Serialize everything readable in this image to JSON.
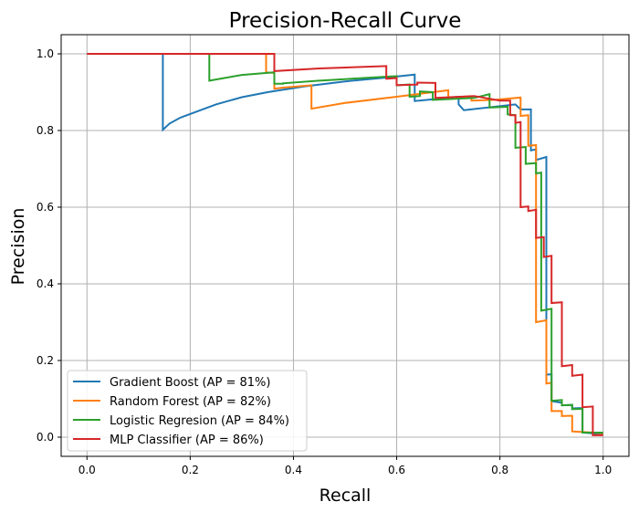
{
  "chart_data": {
    "type": "line",
    "title": "Precision-Recall Curve",
    "xlabel": "Recall",
    "ylabel": "Precision",
    "xlim": [
      -0.05,
      1.05
    ],
    "ylim": [
      -0.05,
      1.05
    ],
    "xticks": [
      0.0,
      0.2,
      0.4,
      0.6,
      0.8,
      1.0
    ],
    "yticks": [
      0.0,
      0.2,
      0.4,
      0.6,
      0.8,
      1.0
    ],
    "xtick_labels": [
      "0.0",
      "0.2",
      "0.4",
      "0.6",
      "0.8",
      "1.0"
    ],
    "ytick_labels": [
      "0.0",
      "0.2",
      "0.4",
      "0.6",
      "0.8",
      "1.0"
    ],
    "grid": true,
    "legend_position": "lower-left",
    "series": [
      {
        "name": "Gradient Boost (AP = 81%)",
        "color": "#1f77b4",
        "points": [
          [
            0.0,
            1.0
          ],
          [
            0.147,
            1.0
          ],
          [
            0.147,
            0.802
          ],
          [
            0.16,
            0.818
          ],
          [
            0.18,
            0.833
          ],
          [
            0.21,
            0.848
          ],
          [
            0.25,
            0.868
          ],
          [
            0.3,
            0.887
          ],
          [
            0.35,
            0.9
          ],
          [
            0.42,
            0.915
          ],
          [
            0.5,
            0.928
          ],
          [
            0.58,
            0.938
          ],
          [
            0.635,
            0.946
          ],
          [
            0.635,
            0.877
          ],
          [
            0.66,
            0.88
          ],
          [
            0.72,
            0.888
          ],
          [
            0.72,
            0.868
          ],
          [
            0.73,
            0.853
          ],
          [
            0.83,
            0.868
          ],
          [
            0.84,
            0.855
          ],
          [
            0.86,
            0.855
          ],
          [
            0.86,
            0.748
          ],
          [
            0.87,
            0.751
          ],
          [
            0.87,
            0.723
          ],
          [
            0.89,
            0.731
          ],
          [
            0.89,
            0.163
          ],
          [
            0.9,
            0.164
          ],
          [
            0.9,
            0.094
          ],
          [
            0.92,
            0.09
          ],
          [
            0.92,
            0.083
          ],
          [
            0.94,
            0.084
          ],
          [
            0.94,
            0.075
          ],
          [
            0.96,
            0.076
          ],
          [
            0.96,
            0.012
          ],
          [
            1.0,
            0.008
          ]
        ]
      },
      {
        "name": "Random Forest (AP = 82%)",
        "color": "#ff7f0e",
        "points": [
          [
            0.0,
            1.0
          ],
          [
            0.347,
            1.0
          ],
          [
            0.347,
            0.952
          ],
          [
            0.363,
            0.95
          ],
          [
            0.363,
            0.909
          ],
          [
            0.38,
            0.912
          ],
          [
            0.435,
            0.918
          ],
          [
            0.435,
            0.857
          ],
          [
            0.5,
            0.872
          ],
          [
            0.6,
            0.888
          ],
          [
            0.7,
            0.905
          ],
          [
            0.7,
            0.885
          ],
          [
            0.745,
            0.887
          ],
          [
            0.745,
            0.878
          ],
          [
            0.79,
            0.88
          ],
          [
            0.84,
            0.886
          ],
          [
            0.84,
            0.838
          ],
          [
            0.855,
            0.84
          ],
          [
            0.855,
            0.76
          ],
          [
            0.87,
            0.762
          ],
          [
            0.87,
            0.3
          ],
          [
            0.89,
            0.305
          ],
          [
            0.89,
            0.14
          ],
          [
            0.9,
            0.142
          ],
          [
            0.9,
            0.068
          ],
          [
            0.92,
            0.068
          ],
          [
            0.92,
            0.055
          ],
          [
            0.94,
            0.056
          ],
          [
            0.94,
            0.015
          ],
          [
            0.98,
            0.012
          ],
          [
            1.0,
            0.01
          ]
        ]
      },
      {
        "name": "Logistic Regresion (AP = 84%)",
        "color": "#2ca02c",
        "points": [
          [
            0.0,
            1.0
          ],
          [
            0.237,
            1.0
          ],
          [
            0.237,
            0.93
          ],
          [
            0.3,
            0.945
          ],
          [
            0.363,
            0.952
          ],
          [
            0.363,
            0.922
          ],
          [
            0.38,
            0.922
          ],
          [
            0.38,
            0.923
          ],
          [
            0.45,
            0.93
          ],
          [
            0.55,
            0.938
          ],
          [
            0.6,
            0.942
          ],
          [
            0.6,
            0.918
          ],
          [
            0.625,
            0.92
          ],
          [
            0.625,
            0.888
          ],
          [
            0.645,
            0.89
          ],
          [
            0.645,
            0.902
          ],
          [
            0.67,
            0.9
          ],
          [
            0.67,
            0.88
          ],
          [
            0.75,
            0.885
          ],
          [
            0.78,
            0.895
          ],
          [
            0.78,
            0.86
          ],
          [
            0.815,
            0.862
          ],
          [
            0.815,
            0.842
          ],
          [
            0.83,
            0.84
          ],
          [
            0.83,
            0.755
          ],
          [
            0.85,
            0.757
          ],
          [
            0.85,
            0.713
          ],
          [
            0.87,
            0.715
          ],
          [
            0.87,
            0.688
          ],
          [
            0.88,
            0.69
          ],
          [
            0.88,
            0.33
          ],
          [
            0.9,
            0.335
          ],
          [
            0.9,
            0.095
          ],
          [
            0.92,
            0.097
          ],
          [
            0.92,
            0.083
          ],
          [
            0.94,
            0.084
          ],
          [
            0.94,
            0.073
          ],
          [
            0.96,
            0.074
          ],
          [
            0.96,
            0.012
          ],
          [
            1.0,
            0.012
          ]
        ]
      },
      {
        "name": "MLP Classifier (AP = 86%)",
        "color": "#d62728",
        "points": [
          [
            0.0,
            1.0
          ],
          [
            0.363,
            1.0
          ],
          [
            0.363,
            0.955
          ],
          [
            0.45,
            0.962
          ],
          [
            0.58,
            0.968
          ],
          [
            0.58,
            0.935
          ],
          [
            0.6,
            0.937
          ],
          [
            0.6,
            0.918
          ],
          [
            0.64,
            0.92
          ],
          [
            0.64,
            0.925
          ],
          [
            0.675,
            0.924
          ],
          [
            0.675,
            0.885
          ],
          [
            0.75,
            0.89
          ],
          [
            0.8,
            0.878
          ],
          [
            0.82,
            0.878
          ],
          [
            0.82,
            0.84
          ],
          [
            0.83,
            0.84
          ],
          [
            0.83,
            0.82
          ],
          [
            0.84,
            0.822
          ],
          [
            0.84,
            0.6
          ],
          [
            0.855,
            0.602
          ],
          [
            0.855,
            0.59
          ],
          [
            0.87,
            0.593
          ],
          [
            0.87,
            0.52
          ],
          [
            0.885,
            0.522
          ],
          [
            0.885,
            0.47
          ],
          [
            0.9,
            0.473
          ],
          [
            0.9,
            0.35
          ],
          [
            0.92,
            0.352
          ],
          [
            0.92,
            0.185
          ],
          [
            0.94,
            0.188
          ],
          [
            0.94,
            0.16
          ],
          [
            0.96,
            0.163
          ],
          [
            0.96,
            0.078
          ],
          [
            0.98,
            0.08
          ],
          [
            0.98,
            0.005
          ],
          [
            1.0,
            0.005
          ]
        ]
      }
    ]
  }
}
